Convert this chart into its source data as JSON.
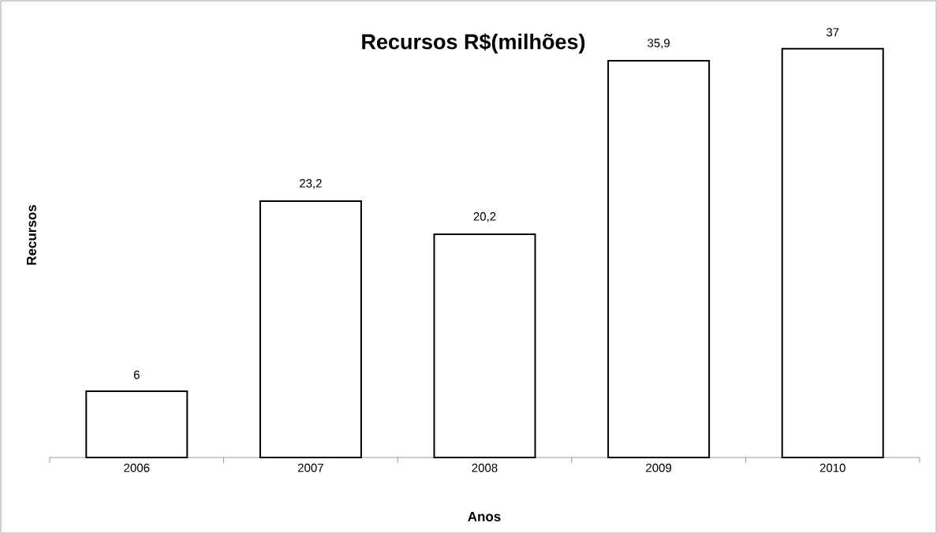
{
  "chart_data": {
    "type": "bar",
    "title": "Recursos R$(milhões)",
    "xlabel": "Anos",
    "ylabel": "Recursos",
    "categories": [
      "2006",
      "2007",
      "2008",
      "2009",
      "2010"
    ],
    "values": [
      6,
      23.2,
      20.2,
      35.9,
      37
    ],
    "value_labels": [
      "6",
      "23,2",
      "20,2",
      "35,9",
      "37"
    ],
    "color": "#ffffff",
    "tick_labels": "x"
  }
}
